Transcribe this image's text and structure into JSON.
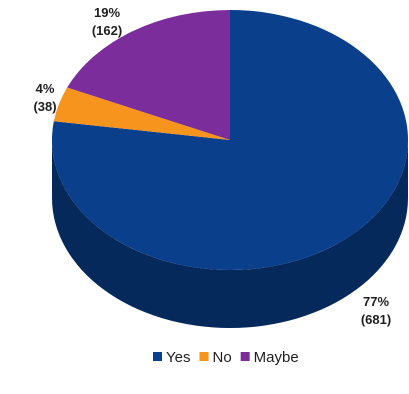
{
  "chart_data": {
    "type": "pie",
    "three_d": true,
    "categories": [
      "Yes",
      "No",
      "Maybe"
    ],
    "values": [
      681,
      38,
      162
    ],
    "percent_labels": [
      "77%",
      "4%",
      "19%"
    ],
    "count_labels": [
      "(681)",
      "(38)",
      "(162)"
    ],
    "colors": [
      "#0a3f8c",
      "#f7941d",
      "#7b2d9b"
    ],
    "side_colors": [
      "#06295c",
      "#b36a10",
      "#4e1c63"
    ],
    "start_angle_deg": 0,
    "legend": {
      "position": "bottom",
      "items": [
        "Yes",
        "No",
        "Maybe"
      ]
    }
  }
}
